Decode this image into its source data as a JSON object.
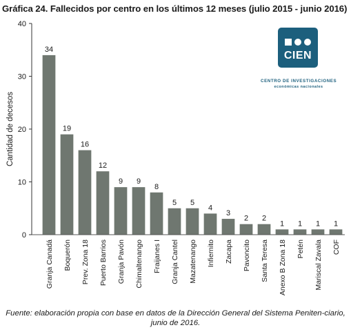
{
  "chart_data": {
    "type": "bar",
    "title": "Gráfica 24. Fallecidos por centro en los últimos 12 meses (julio 2015 - junio 2016)",
    "xlabel": "",
    "ylabel": "Cantidad de decesos",
    "ylim": [
      0,
      40
    ],
    "yticks": [
      0,
      10,
      20,
      30,
      40
    ],
    "grid": false,
    "categories": [
      "Granja Canadá",
      "Boquerón",
      "Prev. Zona 18",
      "Puerto Barrios",
      "Granja Pavón",
      "Chimaltenango",
      "Fraijanes I",
      "Granja Cantel",
      "Mazatenango",
      "Infiernito",
      "Zacapa",
      "Pavoncito",
      "Santa Teresa",
      "Anexo B Zona 18",
      "Petén",
      "Mariscal Zavala",
      "COF"
    ],
    "values": [
      34,
      19,
      16,
      12,
      9,
      9,
      8,
      5,
      5,
      4,
      3,
      2,
      2,
      1,
      1,
      1,
      1
    ],
    "bar_color": "#6f7770"
  },
  "logo": {
    "word": "CIEN",
    "line1": "CENTRO DE INVESTIGACIONES",
    "line2": "económicas nacionales",
    "color": "#1c5f7d"
  },
  "source_note": "Fuente: elaboración propia con base en datos de la  Dirección General del Sistema Peniten-ciario, junio de 2016."
}
